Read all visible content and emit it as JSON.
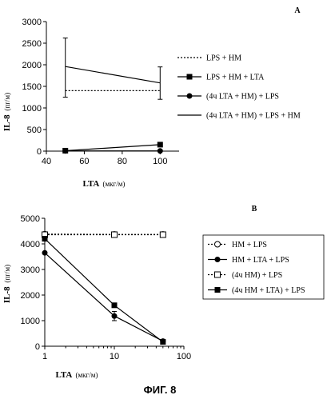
{
  "figure_caption": "ФИГ. 8",
  "chart_data": [
    {
      "panel_label": "A",
      "type": "line",
      "xlabel": "LTA",
      "xlabel_unit": "(мкг/м)",
      "ylabel": "IL-8",
      "ylabel_unit": "(пг/м)",
      "xlim": [
        40,
        110
      ],
      "ylim": [
        0,
        3000
      ],
      "xticks": [
        "40",
        "60",
        "80",
        "100"
      ],
      "yticks": [
        "0",
        "500",
        "1000",
        "1500",
        "2000",
        "2500",
        "3000"
      ],
      "series": [
        {
          "name": "LPS + HM",
          "style": "dotted",
          "marker": "none",
          "points": [
            {
              "x": 50,
              "y": 1400
            },
            {
              "x": 100,
              "y": 1400
            }
          ]
        },
        {
          "name": "LPS + HM + LTA",
          "style": "solid",
          "marker": "square",
          "points": [
            {
              "x": 50,
              "y": 10
            },
            {
              "x": 100,
              "y": 150
            }
          ]
        },
        {
          "name": "(4ч LTA + HM) + LPS",
          "style": "solid",
          "marker": "circle",
          "points": [
            {
              "x": 50,
              "y": 5
            },
            {
              "x": 100,
              "y": 5
            }
          ]
        },
        {
          "name": "(4ч LTA + HM) + LPS + HM",
          "style": "solid",
          "marker": "none",
          "points": [
            {
              "x": 50,
              "y": 1960,
              "err_low": 1250,
              "err_high": 2620
            },
            {
              "x": 100,
              "y": 1580,
              "err_low": 1200,
              "err_high": 1950
            }
          ]
        }
      ]
    },
    {
      "panel_label": "B",
      "type": "line",
      "xscale": "log",
      "xlabel": "LTA",
      "xlabel_unit": "(мкг/м)",
      "ylabel": "IL-8",
      "ylabel_unit": "(пг/м)",
      "xlim": [
        1,
        100
      ],
      "ylim": [
        0,
        5000
      ],
      "xticks": [
        "1",
        "10",
        "100"
      ],
      "yticks": [
        "0",
        "1000",
        "2000",
        "3000",
        "4000",
        "5000"
      ],
      "series": [
        {
          "name": "HM + LPS",
          "style": "dotted",
          "marker": "open-circle",
          "points": [
            {
              "x": 1,
              "y": 4380
            },
            {
              "x": 10,
              "y": 4370
            },
            {
              "x": 50,
              "y": 4370
            }
          ]
        },
        {
          "name": "HM + LTA + LPS",
          "style": "solid",
          "marker": "circle",
          "points": [
            {
              "x": 1,
              "y": 3650
            },
            {
              "x": 10,
              "y": 1180,
              "err_low": 1000,
              "err_high": 1360
            },
            {
              "x": 50,
              "y": 200
            }
          ]
        },
        {
          "name": "(4ч HM) + LPS",
          "style": "dotted",
          "marker": "open-square",
          "points": [
            {
              "x": 1,
              "y": 4360
            },
            {
              "x": 10,
              "y": 4360
            },
            {
              "x": 50,
              "y": 4360
            }
          ]
        },
        {
          "name": "(4ч HM + LTA) + LPS",
          "style": "solid",
          "marker": "square",
          "points": [
            {
              "x": 1,
              "y": 4200
            },
            {
              "x": 10,
              "y": 1600
            },
            {
              "x": 50,
              "y": 170
            }
          ]
        }
      ]
    }
  ]
}
